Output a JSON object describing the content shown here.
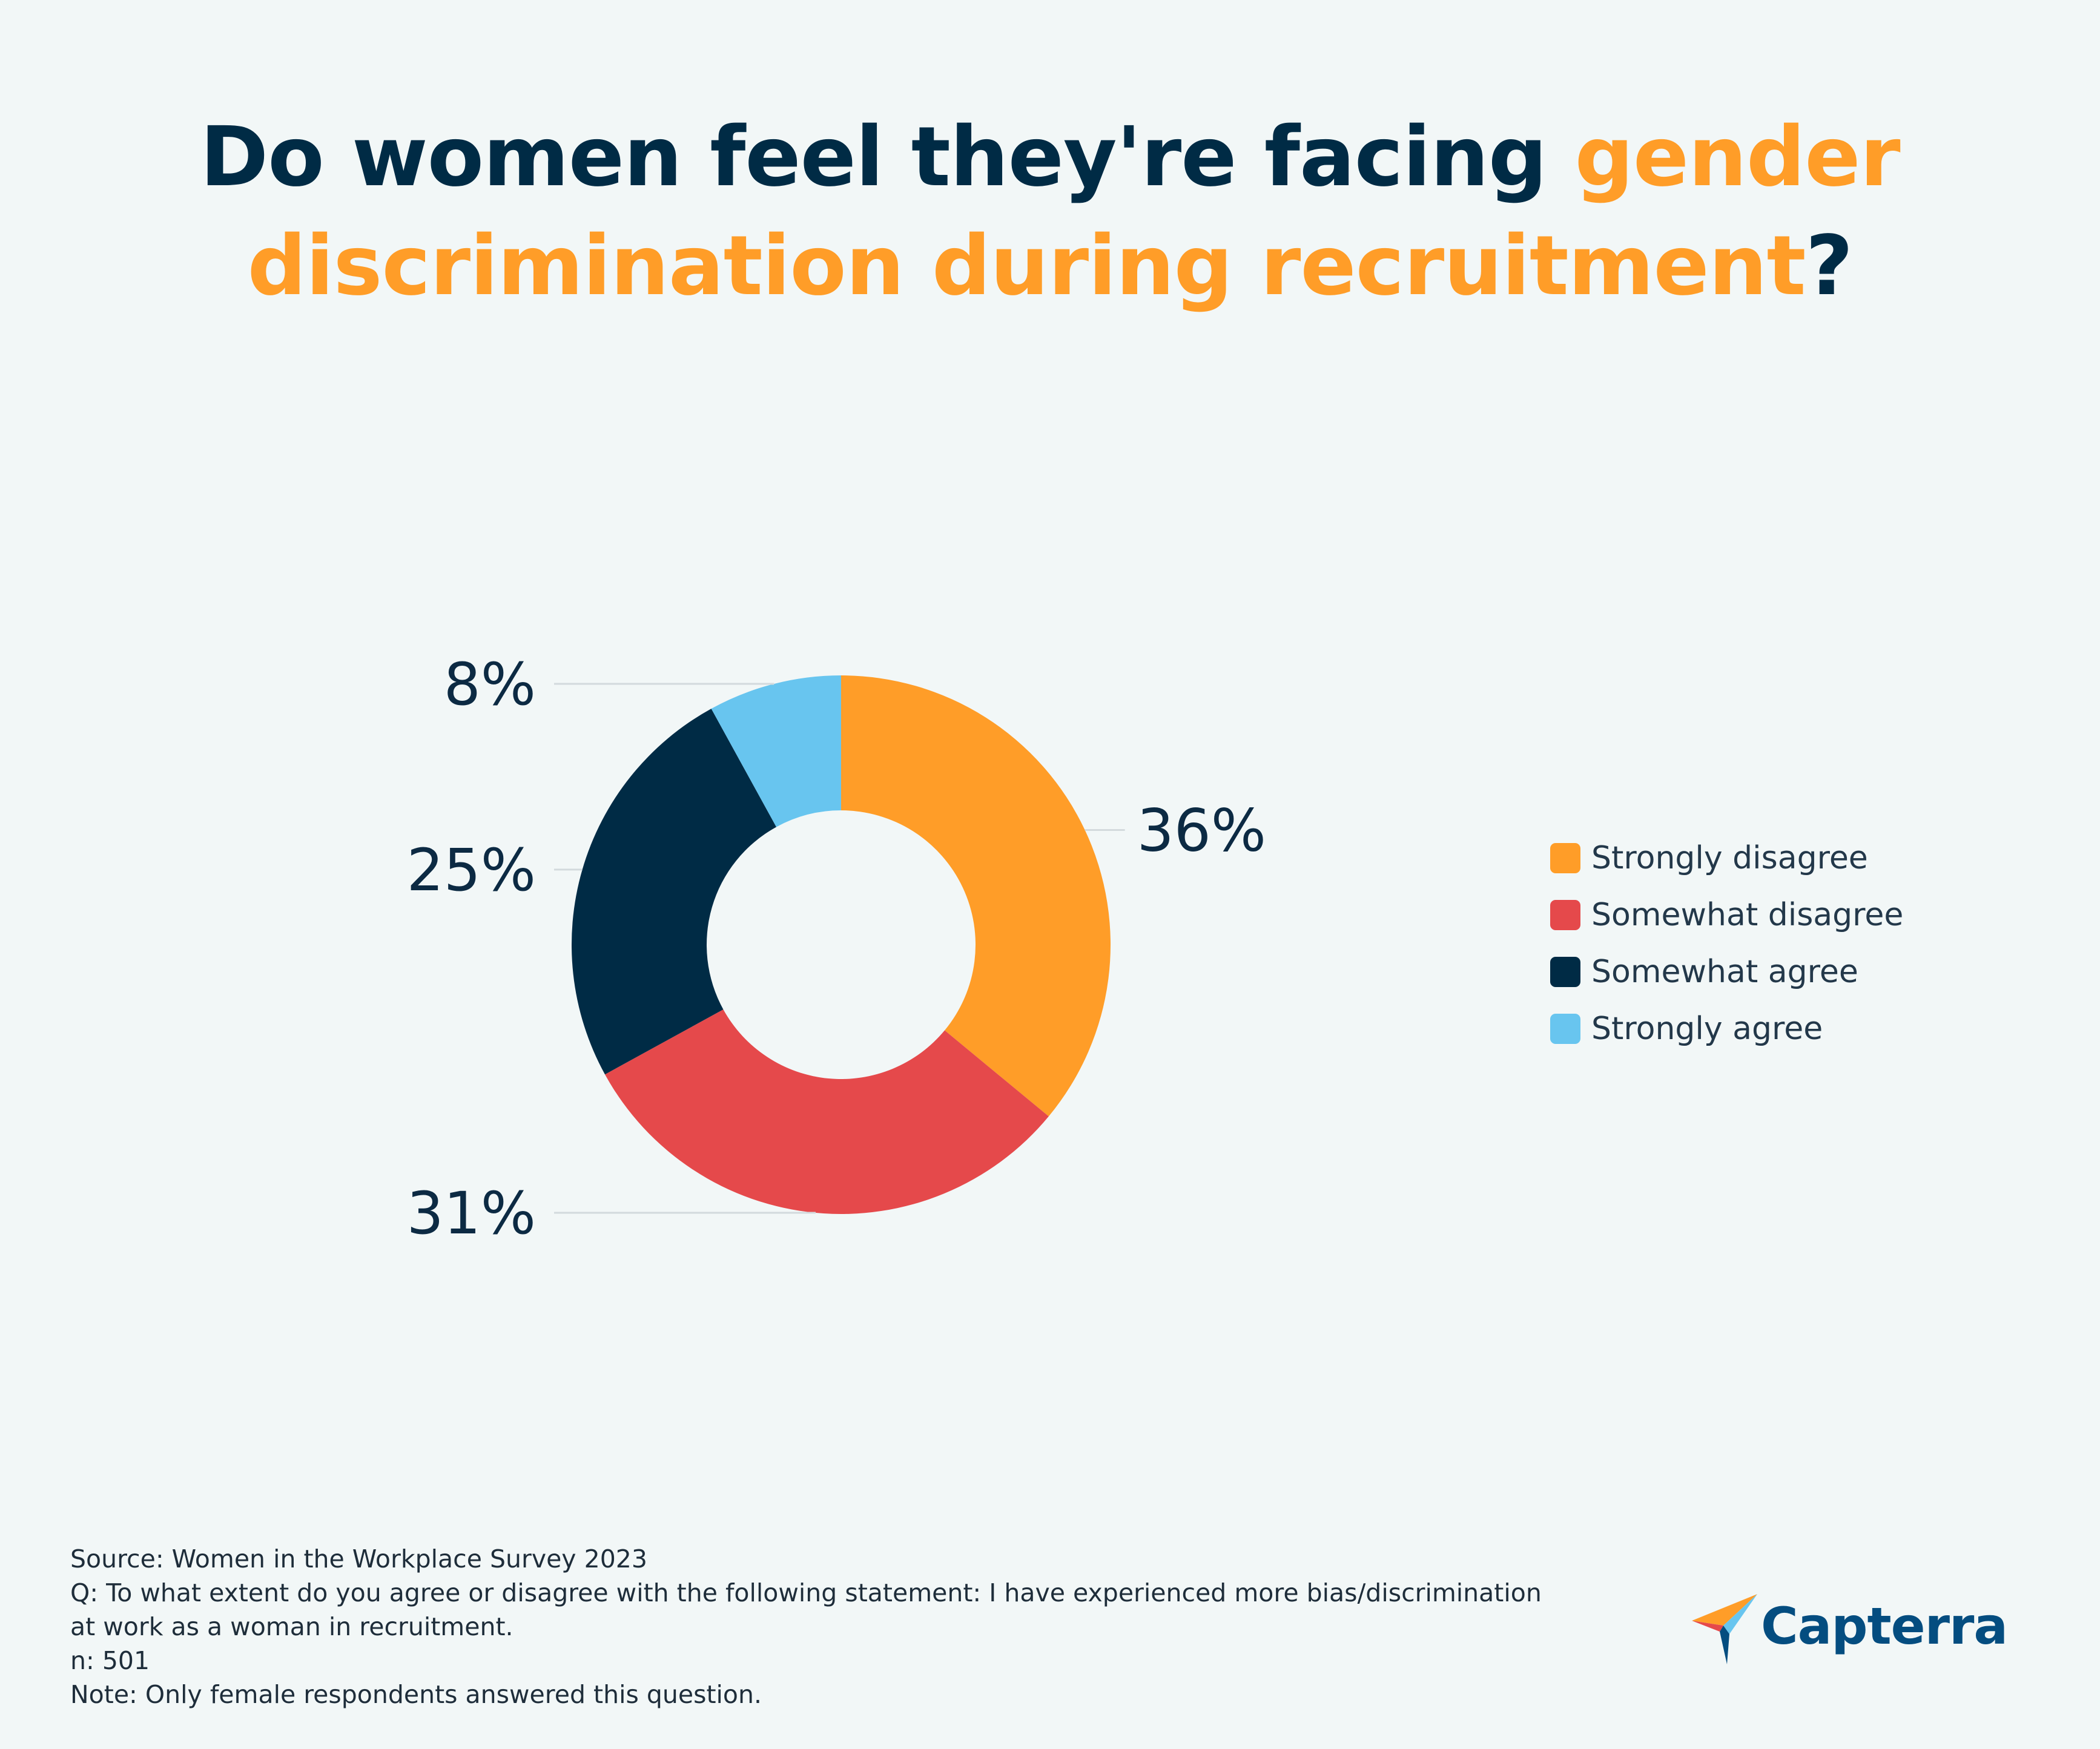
{
  "title": {
    "part1": "Do women feel they're facing ",
    "part2": "gender",
    "part3": "discrimination during recruitment",
    "part4": "?"
  },
  "chart_data": {
    "type": "pie",
    "donut": true,
    "categories": [
      "Strongly disagree",
      "Somewhat disagree",
      "Somewhat agree",
      "Strongly agree"
    ],
    "values": [
      36,
      31,
      25,
      8
    ],
    "labels": [
      "36%",
      "31%",
      "25%",
      "8%"
    ],
    "colors": [
      "#ff9d28",
      "#e5494b",
      "#002b45",
      "#68c5ef"
    ],
    "legend_position": "right"
  },
  "footer": {
    "source": "Source: Women in the Workplace Survey 2023",
    "question_line1": "Q: To what extent do you agree or disagree with the following statement: I have experienced more bias/discrimination",
    "question_line2": "at work as a woman in recruitment.",
    "n": "n: 501",
    "note": "Note: Only female respondents answered this question."
  },
  "logo": {
    "text": "Capterra",
    "icon": "capterra-arrow-icon"
  }
}
